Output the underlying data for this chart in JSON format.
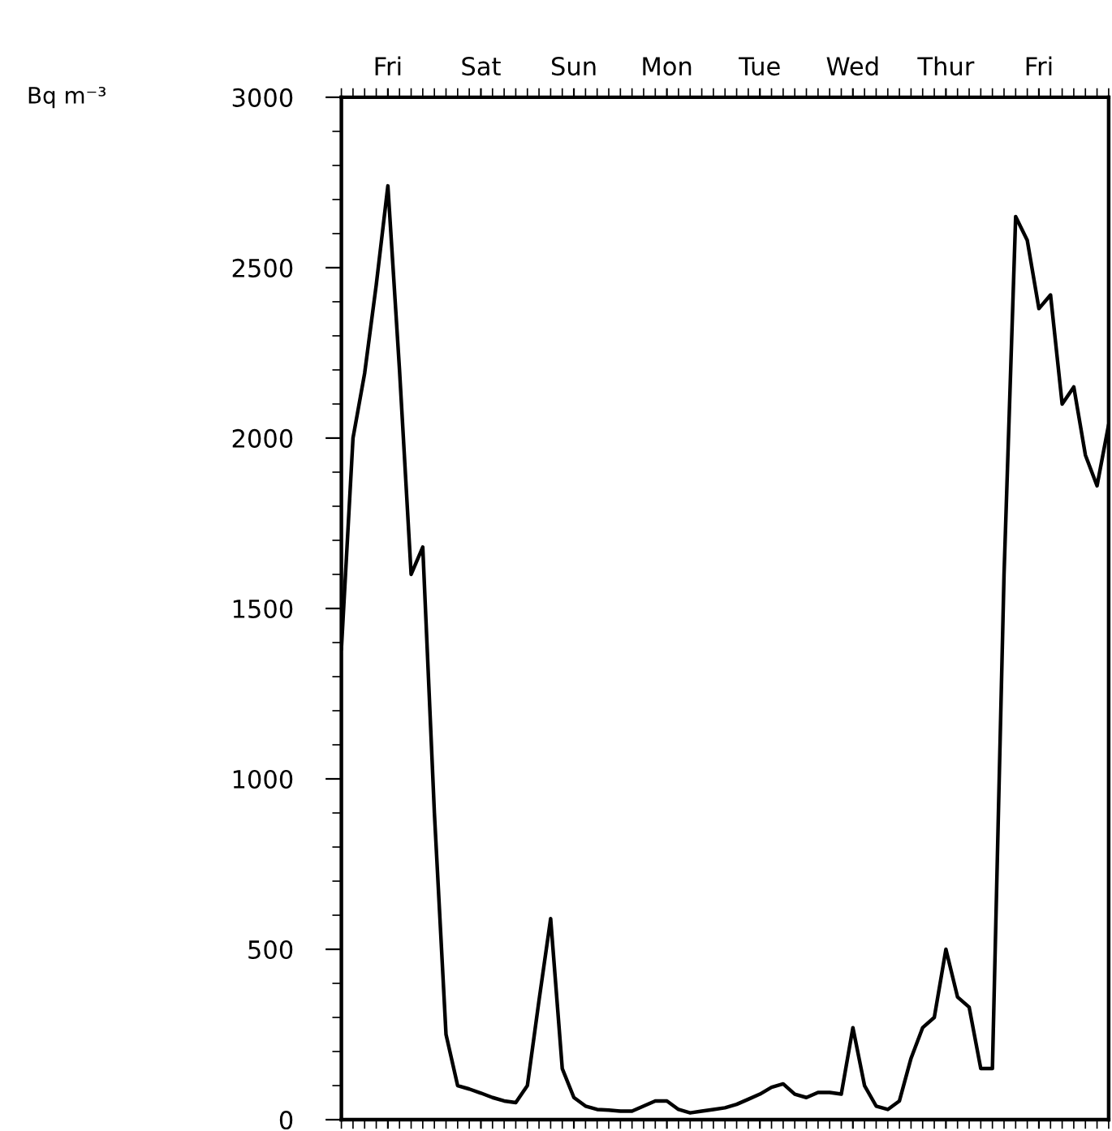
{
  "chart_data": {
    "type": "line",
    "annotations": [
      "Bq m⁻³"
    ],
    "categories": [
      null,
      null,
      null,
      null,
      "Fri",
      null,
      null,
      null,
      null,
      null,
      null,
      null,
      "Sat",
      null,
      null,
      null,
      null,
      null,
      null,
      null,
      "Sun",
      null,
      null,
      null,
      null,
      null,
      null,
      null,
      "Mon",
      null,
      null,
      null,
      null,
      null,
      null,
      null,
      "Tue",
      null,
      null,
      null,
      null,
      null,
      null,
      null,
      "Wed",
      null,
      null,
      null,
      null,
      null,
      null,
      null,
      "Thur",
      null,
      null,
      null,
      null,
      null,
      null,
      null,
      "Fri",
      null,
      null,
      null,
      null,
      null,
      null
    ],
    "series": [
      {
        "color": "#000000",
        "values": [
          1380,
          2000,
          2190,
          2450,
          2740,
          2200,
          1600,
          1680,
          900,
          250,
          100,
          90,
          78,
          65,
          55,
          50,
          100,
          350,
          590,
          150,
          65,
          40,
          30,
          28,
          25,
          25,
          40,
          55,
          55,
          30,
          20,
          25,
          30,
          35,
          45,
          60,
          75,
          95,
          105,
          75,
          65,
          80,
          80,
          75,
          270,
          100,
          40,
          30,
          55,
          180,
          270,
          300,
          500,
          360,
          330,
          150,
          150,
          1600,
          2650,
          2580,
          2380,
          2420,
          2100,
          2150,
          1950,
          1860,
          2040
        ]
      }
    ],
    "ylim": [
      0,
      3000
    ],
    "yticks": [
      0,
      500,
      1000,
      1500,
      2000,
      2500,
      3000,
      {
        "value": 100,
        "label": null
      },
      {
        "value": 200,
        "label": null
      },
      {
        "value": 300,
        "label": null
      },
      {
        "value": 400,
        "label": null
      },
      {
        "value": 600,
        "label": null
      },
      {
        "value": 700,
        "label": null
      },
      {
        "value": 800,
        "label": null
      },
      {
        "value": 900,
        "label": null
      },
      {
        "value": 1100,
        "label": null
      },
      {
        "value": 1200,
        "label": null
      },
      {
        "value": 1300,
        "label": null
      },
      {
        "value": 1400,
        "label": null
      },
      {
        "value": 1600,
        "label": null
      },
      {
        "value": 1700,
        "label": null
      },
      {
        "value": 1800,
        "label": null
      },
      {
        "value": 1900,
        "label": null
      },
      {
        "value": 2100,
        "label": null
      },
      {
        "value": 2200,
        "label": null
      },
      {
        "value": 2300,
        "label": null
      },
      {
        "value": 2400,
        "label": null
      },
      {
        "value": 2600,
        "label": null
      },
      {
        "value": 2700,
        "label": null
      },
      {
        "value": 2800,
        "label": null
      },
      {
        "value": 2900,
        "label": null
      }
    ],
    "grid": false,
    "legend": false
  }
}
